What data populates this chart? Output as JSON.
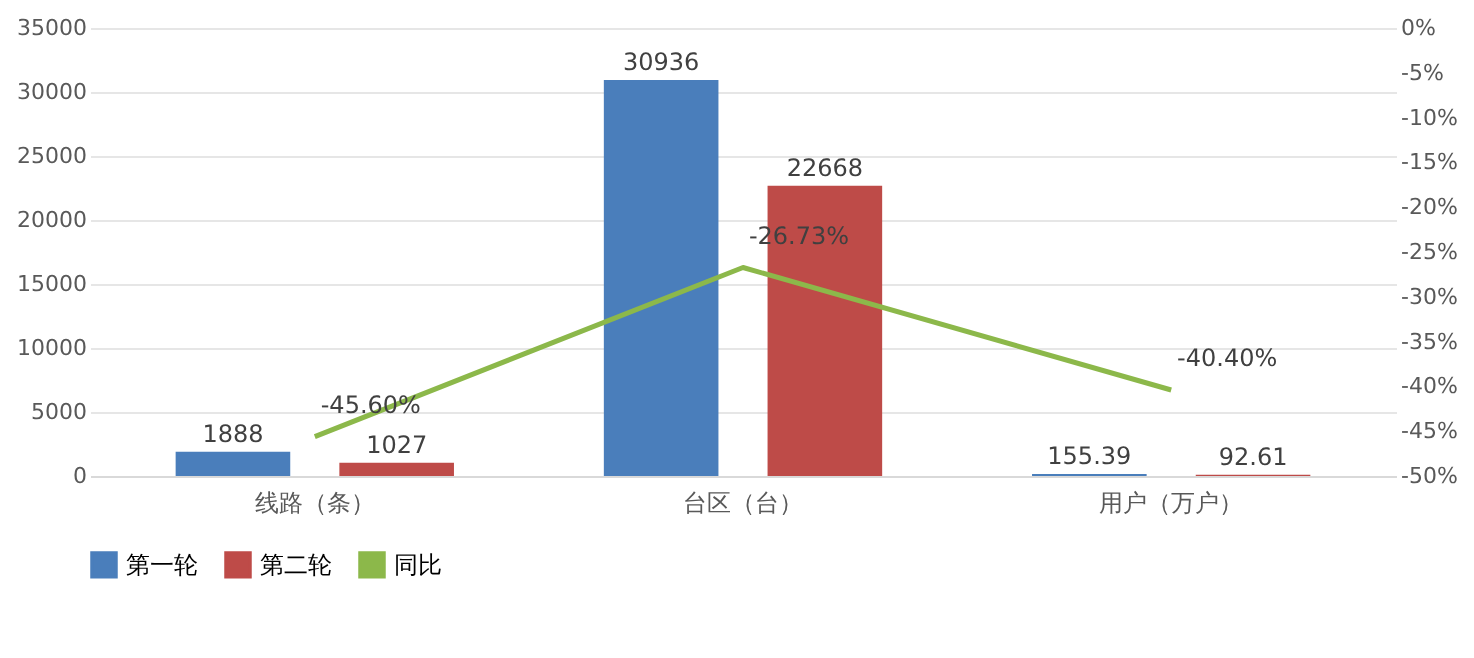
{
  "chart_data": {
    "type": "bar",
    "categories": [
      "线路（条）",
      "台区（台）",
      "用户（万户）"
    ],
    "series": [
      {
        "name": "第一轮",
        "color": "#4a7ebb",
        "values": [
          1888,
          30936,
          155.39
        ],
        "value_labels": [
          "1888",
          "30936",
          "155.39"
        ]
      },
      {
        "name": "第二轮",
        "color": "#be4b48",
        "values": [
          1027,
          22668,
          92.61
        ],
        "value_labels": [
          "1027",
          "22668",
          "92.61"
        ]
      },
      {
        "name": "同比",
        "type": "line",
        "axis": "y2",
        "color": "#8cb84a",
        "values": [
          -45.6,
          -26.73,
          -40.4
        ],
        "value_labels": [
          "-45.60%",
          "-26.73%",
          "-40.40%"
        ]
      }
    ],
    "ylim": [
      0,
      35000
    ],
    "yticks": [
      0,
      5000,
      10000,
      15000,
      20000,
      25000,
      30000,
      35000
    ],
    "y2lim": [
      -50,
      0
    ],
    "y2ticks": [
      {
        "value": 0,
        "label": "0%"
      },
      {
        "value": -5,
        "label": "-5%"
      },
      {
        "value": -10,
        "label": "-10%"
      },
      {
        "value": -15,
        "label": "-15%"
      },
      {
        "value": -20,
        "label": "-20%"
      },
      {
        "value": -25,
        "label": "-25%"
      },
      {
        "value": -30,
        "label": "-30%"
      },
      {
        "value": -35,
        "label": "-35%"
      },
      {
        "value": -40,
        "label": "-40%"
      },
      {
        "value": -45,
        "label": "-45%"
      },
      {
        "value": -50,
        "label": "-50%"
      }
    ],
    "grid": "y",
    "legend": "bottom"
  }
}
